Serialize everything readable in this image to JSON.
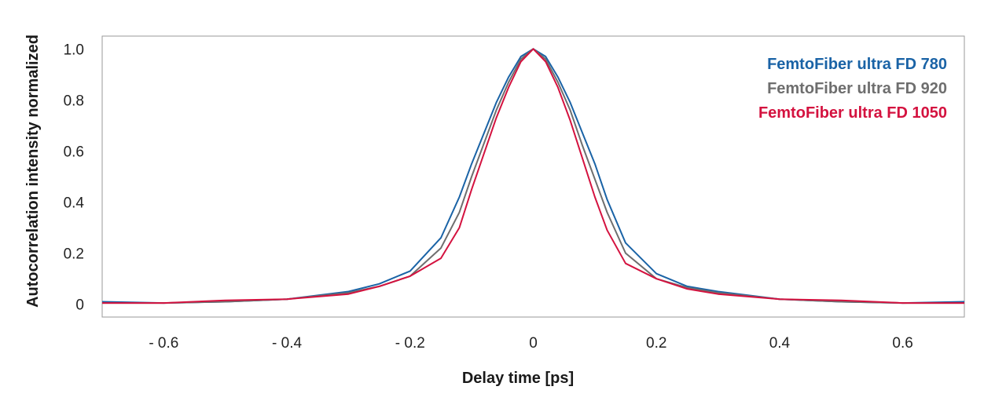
{
  "chart_data": {
    "type": "line",
    "title": "",
    "xlabel": "Delay time [ps]",
    "ylabel": "Autocorrelation intensity normalized",
    "xlim": [
      -0.7,
      0.7
    ],
    "ylim": [
      -0.05,
      1.05
    ],
    "x_ticks": [
      -0.6,
      -0.4,
      -0.2,
      0,
      0.2,
      0.4,
      0.6
    ],
    "x_tick_labels": [
      "- 0.6",
      "- 0.4",
      "- 0.2",
      "0",
      "0.2",
      "0.4",
      "0.6"
    ],
    "y_ticks": [
      0,
      0.2,
      0.4,
      0.6,
      0.8,
      1.0
    ],
    "y_tick_labels": [
      "0",
      "0.2",
      "0.4",
      "0.6",
      "0.8",
      "1.0"
    ],
    "grid": false,
    "legend_position": "top-right",
    "x": [
      -0.7,
      -0.6,
      -0.5,
      -0.4,
      -0.3,
      -0.25,
      -0.2,
      -0.15,
      -0.12,
      -0.1,
      -0.08,
      -0.06,
      -0.04,
      -0.02,
      0,
      0.02,
      0.04,
      0.06,
      0.08,
      0.1,
      0.12,
      0.15,
      0.2,
      0.25,
      0.3,
      0.4,
      0.5,
      0.6,
      0.7
    ],
    "series": [
      {
        "name": "FemtoFiber ultra FD 780",
        "color": "#1a63a6",
        "values": [
          0.01,
          0.005,
          0.01,
          0.02,
          0.05,
          0.08,
          0.13,
          0.26,
          0.42,
          0.55,
          0.67,
          0.79,
          0.89,
          0.97,
          1.0,
          0.97,
          0.89,
          0.79,
          0.67,
          0.55,
          0.41,
          0.24,
          0.12,
          0.07,
          0.05,
          0.02,
          0.01,
          0.005,
          0.01
        ]
      },
      {
        "name": "FemtoFiber ultra FD 920",
        "color": "#6e6e6e",
        "values": [
          0.005,
          0.005,
          0.01,
          0.02,
          0.045,
          0.07,
          0.11,
          0.22,
          0.36,
          0.5,
          0.63,
          0.76,
          0.87,
          0.96,
          1.0,
          0.96,
          0.87,
          0.76,
          0.62,
          0.49,
          0.36,
          0.2,
          0.1,
          0.065,
          0.045,
          0.02,
          0.01,
          0.005,
          0.005
        ]
      },
      {
        "name": "FemtoFiber ultra FD 1050",
        "color": "#d4123f",
        "values": [
          0.005,
          0.005,
          0.015,
          0.02,
          0.04,
          0.07,
          0.11,
          0.18,
          0.3,
          0.45,
          0.59,
          0.73,
          0.85,
          0.95,
          1.0,
          0.95,
          0.85,
          0.72,
          0.57,
          0.42,
          0.29,
          0.16,
          0.1,
          0.06,
          0.04,
          0.02,
          0.015,
          0.005,
          0.005
        ]
      }
    ]
  }
}
